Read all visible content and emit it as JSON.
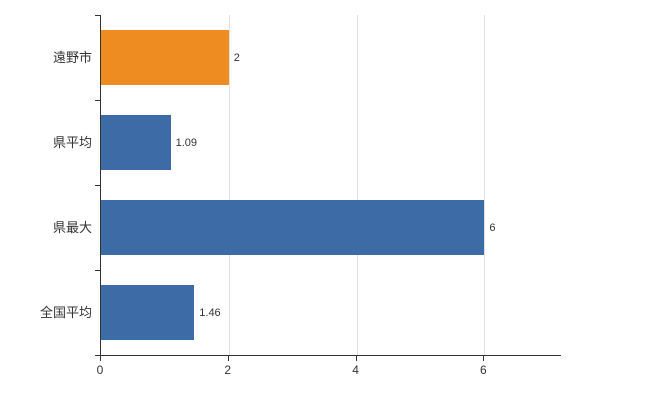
{
  "chart_data": {
    "type": "bar",
    "orientation": "horizontal",
    "title": "",
    "xlabel": "",
    "ylabel": "",
    "categories": [
      "遠野市",
      "県平均",
      "県最大",
      "全国平均"
    ],
    "values": [
      2,
      1.09,
      6,
      1.46
    ],
    "value_labels": [
      "2",
      "1.09",
      "6",
      "1.46"
    ],
    "bar_colors": [
      "#ef8c21",
      "#3d6ba6",
      "#3d6ba6",
      "#3d6ba6"
    ],
    "xlim": [
      0,
      7.2
    ],
    "x_ticks": [
      0,
      2,
      4,
      6
    ],
    "x_tick_labels": [
      "0",
      "2",
      "4",
      "6"
    ],
    "grid": true,
    "legend": false,
    "colors": {
      "axis": "#333333",
      "gridline": "#e0e0e0",
      "text": "#333333",
      "background": "#ffffff"
    }
  }
}
